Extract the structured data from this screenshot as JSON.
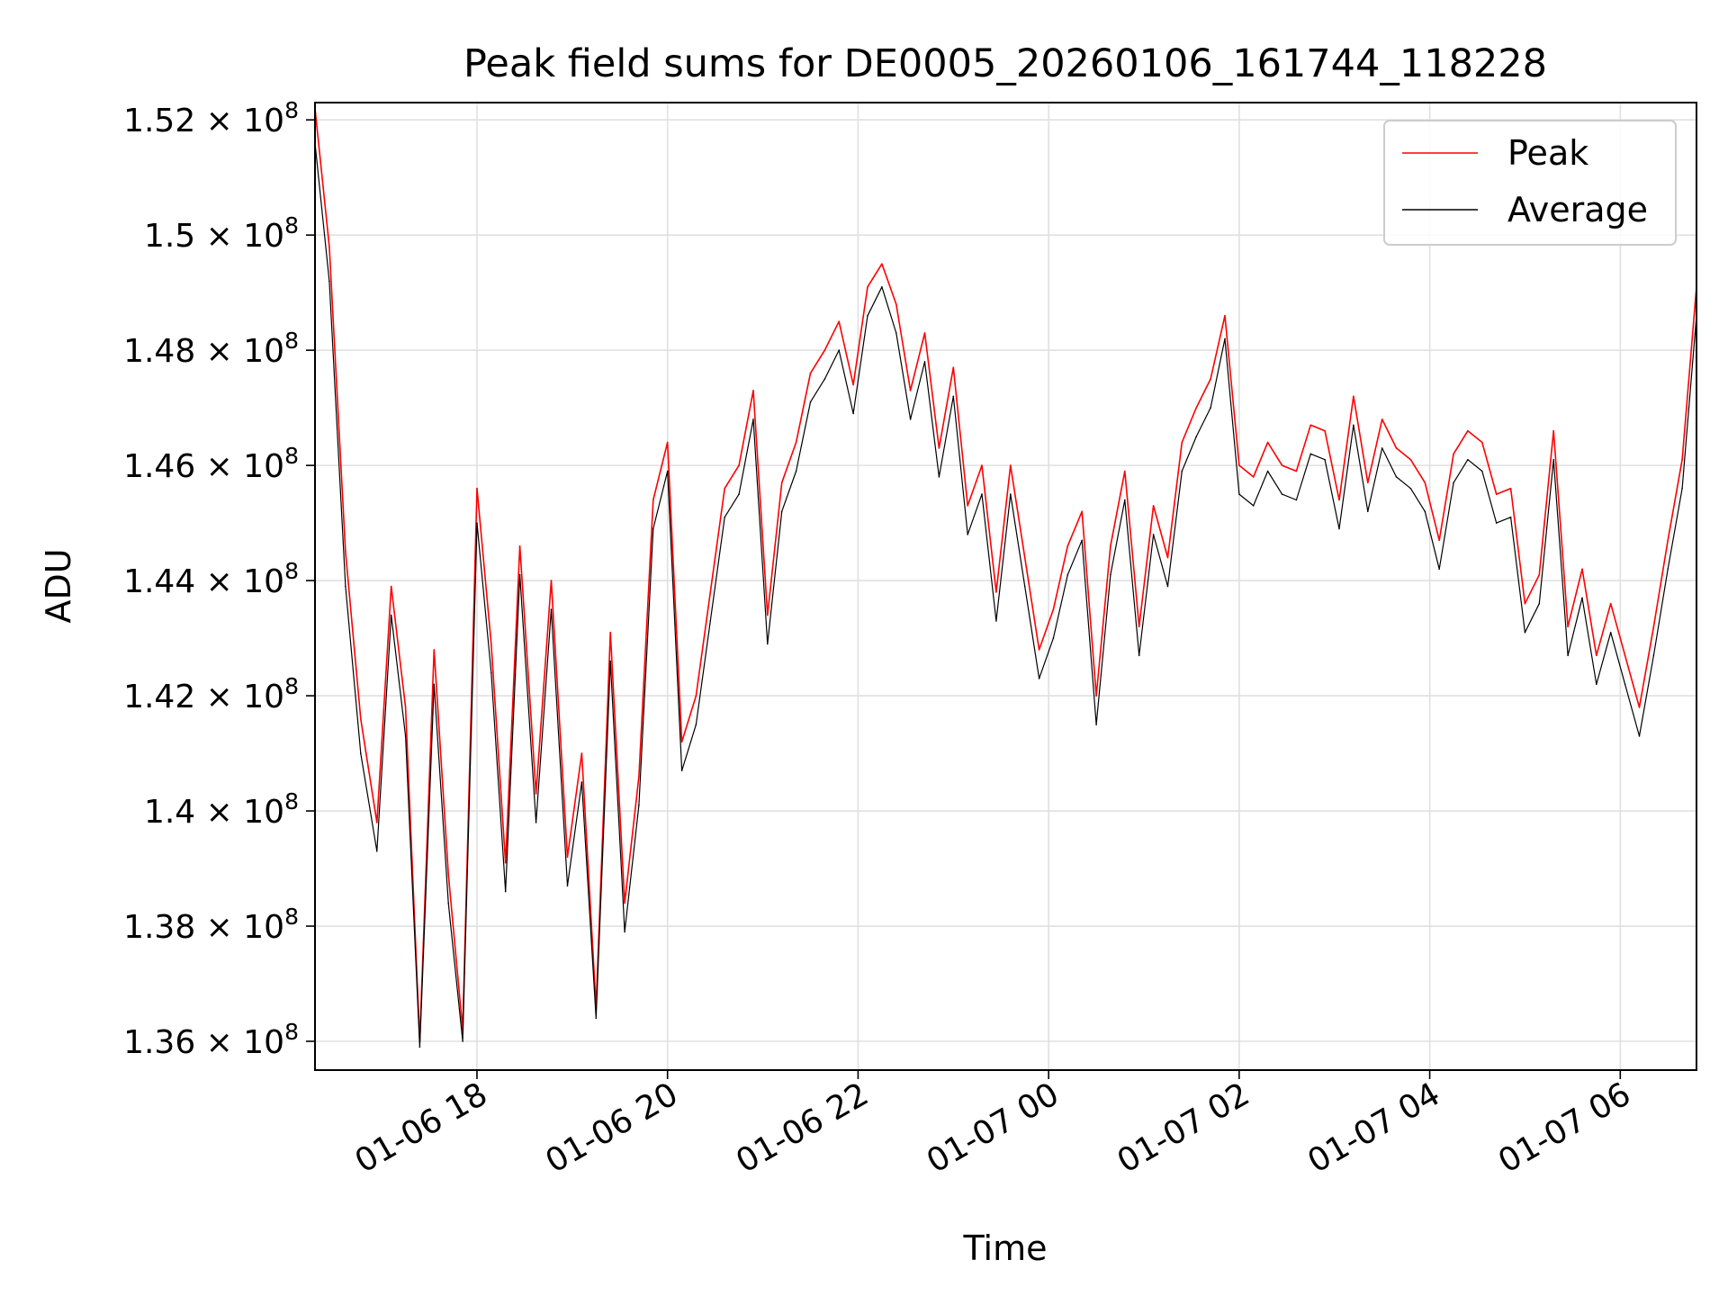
{
  "chart_data": {
    "type": "line",
    "title": "Peak field sums for DE0005_20260106_161744_118228",
    "xlabel": "Time",
    "ylabel": "ADU",
    "x_units": "hours since 2026-01-06 00:00",
    "xlim": [
      16.3,
      30.8
    ],
    "ylim": [
      135.5,
      152.3
    ],
    "y_unit_scale": 1000000,
    "grid": true,
    "legend_position": "top-right",
    "x_ticks": [
      {
        "value": 18,
        "label": "01-06 18"
      },
      {
        "value": 20,
        "label": "01-06 20"
      },
      {
        "value": 22,
        "label": "01-06 22"
      },
      {
        "value": 24,
        "label": "01-07 00"
      },
      {
        "value": 26,
        "label": "01-07 02"
      },
      {
        "value": 28,
        "label": "01-07 04"
      },
      {
        "value": 30,
        "label": "01-07 06"
      }
    ],
    "y_ticks": [
      {
        "value": 136,
        "mantissa": "1.36",
        "base": "10",
        "exp": "8"
      },
      {
        "value": 138,
        "mantissa": "1.38",
        "base": "10",
        "exp": "8"
      },
      {
        "value": 140,
        "mantissa": "1.4",
        "base": "10",
        "exp": "8"
      },
      {
        "value": 142,
        "mantissa": "1.42",
        "base": "10",
        "exp": "8"
      },
      {
        "value": 144,
        "mantissa": "1.44",
        "base": "10",
        "exp": "8"
      },
      {
        "value": 146,
        "mantissa": "1.46",
        "base": "10",
        "exp": "8"
      },
      {
        "value": 148,
        "mantissa": "1.48",
        "base": "10",
        "exp": "8"
      },
      {
        "value": 150,
        "mantissa": "1.5",
        "base": "10",
        "exp": "8"
      },
      {
        "value": 152,
        "mantissa": "1.52",
        "base": "10",
        "exp": "8"
      }
    ],
    "x": [
      16.3,
      16.45,
      16.62,
      16.78,
      16.95,
      17.1,
      17.25,
      17.4,
      17.55,
      17.7,
      17.85,
      18.0,
      18.15,
      18.3,
      18.45,
      18.62,
      18.78,
      18.95,
      19.1,
      19.25,
      19.4,
      19.55,
      19.7,
      19.85,
      20.0,
      20.15,
      20.3,
      20.45,
      20.6,
      20.75,
      20.9,
      21.05,
      21.2,
      21.35,
      21.5,
      21.65,
      21.8,
      21.95,
      22.1,
      22.25,
      22.4,
      22.55,
      22.7,
      22.85,
      23.0,
      23.15,
      23.3,
      23.45,
      23.6,
      23.75,
      23.9,
      24.05,
      24.2,
      24.35,
      24.5,
      24.65,
      24.8,
      24.95,
      25.1,
      25.25,
      25.4,
      25.55,
      25.7,
      25.85,
      26.0,
      26.15,
      26.3,
      26.45,
      26.6,
      26.75,
      26.9,
      27.05,
      27.2,
      27.35,
      27.5,
      27.65,
      27.8,
      27.95,
      28.1,
      28.25,
      28.4,
      28.55,
      28.7,
      28.85,
      29.0,
      29.15,
      29.3,
      29.45,
      29.6,
      29.75,
      29.9,
      30.05,
      30.2,
      30.35,
      30.5,
      30.65,
      30.8
    ],
    "series": [
      {
        "name": "Peak",
        "color": "#ff0000",
        "values": [
          152.2,
          149.8,
          144.5,
          141.6,
          139.8,
          143.9,
          141.8,
          136.0,
          142.8,
          138.9,
          136.2,
          145.6,
          142.9,
          139.1,
          144.6,
          140.3,
          144.0,
          139.2,
          141.0,
          136.6,
          143.1,
          138.4,
          140.6,
          145.4,
          146.4,
          141.2,
          142.0,
          143.8,
          145.6,
          146.0,
          147.3,
          143.4,
          145.7,
          146.4,
          147.6,
          148.0,
          148.5,
          147.4,
          149.1,
          149.5,
          148.8,
          147.3,
          148.3,
          146.3,
          147.7,
          145.3,
          146.0,
          143.8,
          146.0,
          144.4,
          142.8,
          143.5,
          144.6,
          145.2,
          142.0,
          144.6,
          145.9,
          143.2,
          145.3,
          144.4,
          146.4,
          147.0,
          147.5,
          148.6,
          146.0,
          145.8,
          146.4,
          146.0,
          145.9,
          146.7,
          146.6,
          145.4,
          147.2,
          145.7,
          146.8,
          146.3,
          146.1,
          145.7,
          144.7,
          146.2,
          146.6,
          146.4,
          145.5,
          145.6,
          143.6,
          144.1,
          146.6,
          143.2,
          144.2,
          142.7,
          143.6,
          142.7,
          141.8,
          143.2,
          144.7,
          146.1,
          149.1
        ]
      },
      {
        "name": "Average",
        "color": "#000000",
        "values": [
          151.6,
          149.2,
          143.9,
          141.0,
          139.3,
          143.4,
          141.3,
          135.9,
          142.2,
          138.4,
          136.0,
          145.0,
          142.4,
          138.6,
          144.1,
          139.8,
          143.5,
          138.7,
          140.5,
          136.4,
          142.6,
          137.9,
          140.1,
          144.9,
          145.9,
          140.7,
          141.5,
          143.3,
          145.1,
          145.5,
          146.8,
          142.9,
          145.2,
          145.9,
          147.1,
          147.5,
          148.0,
          146.9,
          148.6,
          149.1,
          148.3,
          146.8,
          147.8,
          145.8,
          147.2,
          144.8,
          145.5,
          143.3,
          145.5,
          143.9,
          142.3,
          143.0,
          144.1,
          144.7,
          141.5,
          144.1,
          145.4,
          142.7,
          144.8,
          143.9,
          145.9,
          146.5,
          147.0,
          148.2,
          145.5,
          145.3,
          145.9,
          145.5,
          145.4,
          146.2,
          146.1,
          144.9,
          146.7,
          145.2,
          146.3,
          145.8,
          145.6,
          145.2,
          144.2,
          145.7,
          146.1,
          145.9,
          145.0,
          145.1,
          143.1,
          143.6,
          146.1,
          142.7,
          143.7,
          142.2,
          143.1,
          142.2,
          141.3,
          142.7,
          144.2,
          145.6,
          148.6
        ]
      }
    ],
    "legend": [
      {
        "label": "Peak",
        "color": "#ff0000"
      },
      {
        "label": "Average",
        "color": "#000000"
      }
    ]
  }
}
